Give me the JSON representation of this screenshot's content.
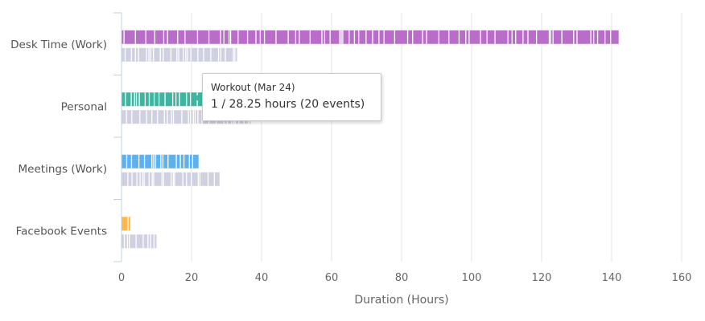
{
  "chart_data": {
    "type": "bar",
    "orientation": "horizontal",
    "categories": [
      "Desk Time (Work)",
      "Personal",
      "Meetings (Work)",
      "Facebook Events"
    ],
    "xlabel": "Duration (Hours)",
    "xlim": [
      0,
      160
    ],
    "xticks": [
      0,
      20,
      40,
      60,
      80,
      100,
      120,
      140,
      160
    ],
    "grid": true,
    "legend": "none",
    "series": [
      {
        "values": [
          142,
          23,
          22,
          2.5
        ],
        "color": "#b86ec9",
        "colors": [
          "#b86ec9",
          "#3db5a0",
          "#5eb1ef",
          "#ffb74d"
        ]
      },
      {
        "values": [
          33,
          37,
          28,
          10
        ],
        "color": "#cfd0e0"
      }
    ]
  },
  "tooltip": {
    "title": "Workout (Mar 24)",
    "value": "1 / 28.25 hours (20 events)"
  }
}
